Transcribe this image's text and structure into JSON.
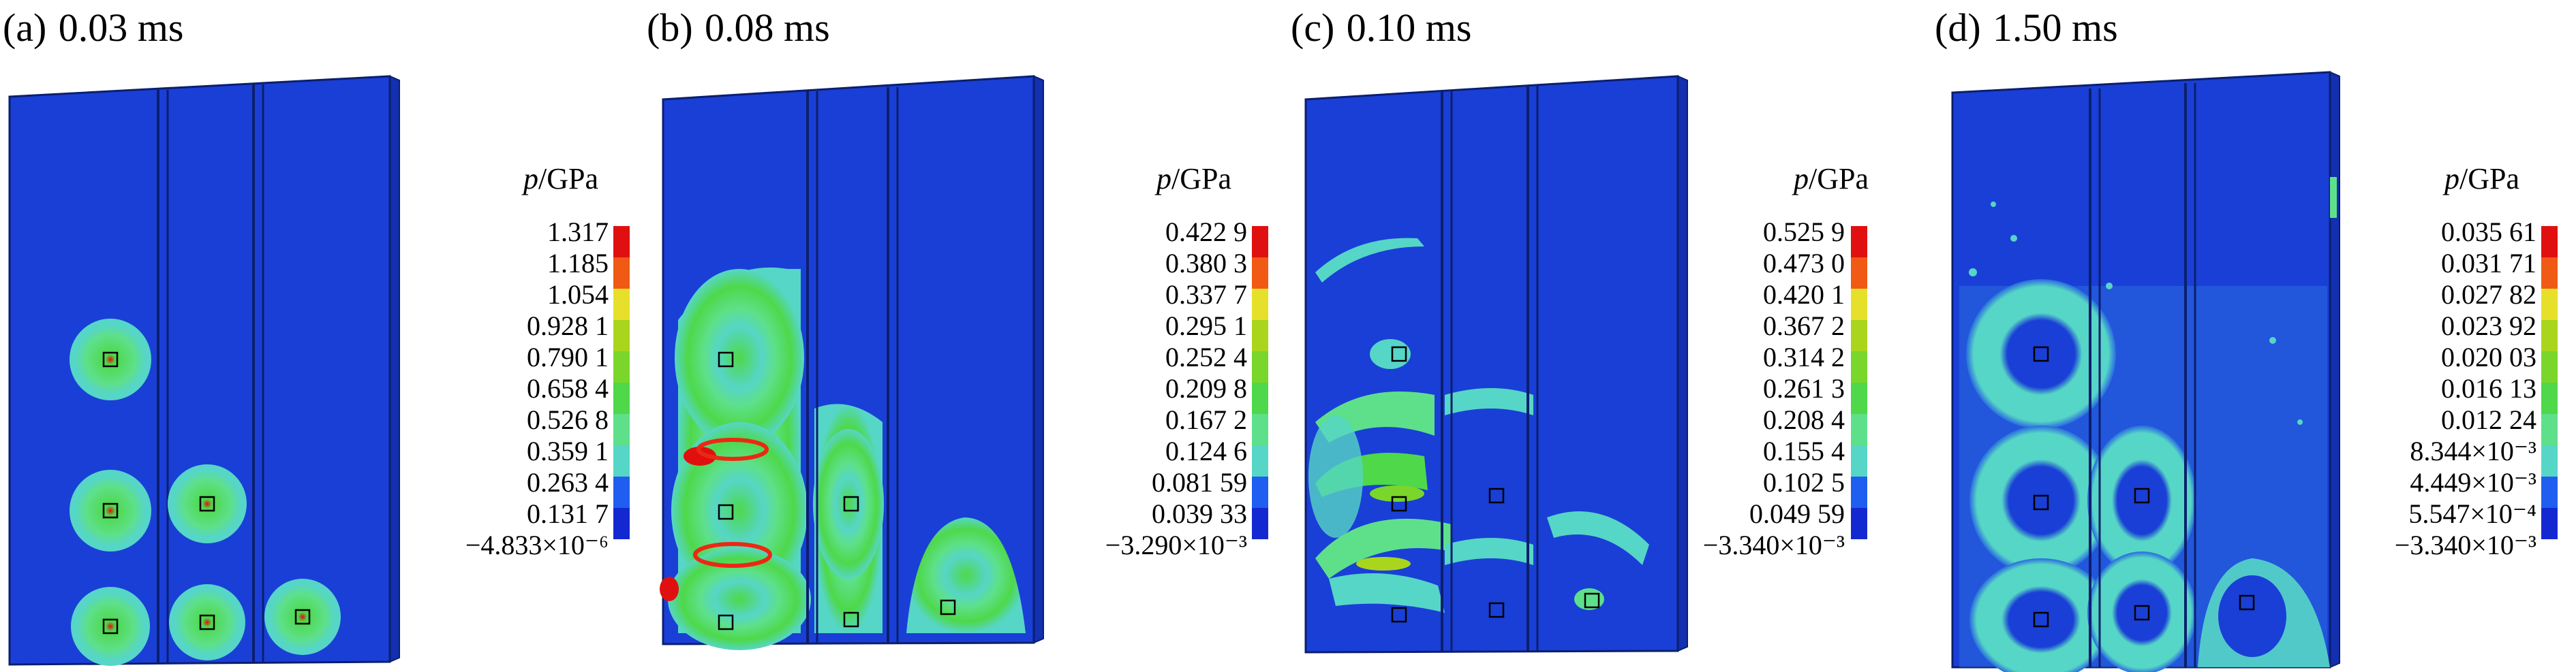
{
  "colors": {
    "background": "#1a3fd6",
    "plate_edge": "#0b1f6e",
    "colormap": [
      "#1428d2",
      "#1f5ef0",
      "#56d6c6",
      "#5ee08a",
      "#4ed84a",
      "#7ad62a",
      "#a9d61c",
      "#e6e02a",
      "#f5a020",
      "#f05a14",
      "#ec2814",
      "#e01010"
    ]
  },
  "panels": [
    {
      "label": "(a)",
      "time": "0.03 ms",
      "legend": {
        "symbol": "p",
        "unit": "/GPa",
        "values": [
          "1.317",
          "1.185",
          "1.054",
          "0.928 1",
          "0.790 1",
          "0.658 4",
          "0.526 8",
          "0.359 1",
          "0.263 4",
          "0.131 7",
          "−4.833×10⁻⁶"
        ]
      }
    },
    {
      "label": "(b)",
      "time": "0.08 ms",
      "legend": {
        "symbol": "p",
        "unit": "/GPa",
        "values": [
          "0.422 9",
          "0.380 3",
          "0.337 7",
          "0.295 1",
          "0.252 4",
          "0.209 8",
          "0.167 2",
          "0.124 6",
          "0.081 59",
          "0.039 33",
          "−3.290×10⁻³"
        ]
      }
    },
    {
      "label": "(c)",
      "time": "0.10 ms",
      "legend": {
        "symbol": "p",
        "unit": "/GPa",
        "values": [
          "0.525 9",
          "0.473 0",
          "0.420 1",
          "0.367 2",
          "0.314 2",
          "0.261 3",
          "0.208 4",
          "0.155 4",
          "0.102 5",
          "0.049 59",
          "−3.340×10⁻³"
        ]
      }
    },
    {
      "label": "(d)",
      "time": "1.50 ms",
      "legend": {
        "symbol": "p",
        "unit": "/GPa",
        "values": [
          "0.035 61",
          "0.031 71",
          "0.027 82",
          "0.023 92",
          "0.020 03",
          "0.016 13",
          "0.012 24",
          "8.344×10⁻³",
          "4.449×10⁻³",
          "5.547×10⁻⁴",
          "−3.340×10⁻³"
        ]
      }
    }
  ]
}
